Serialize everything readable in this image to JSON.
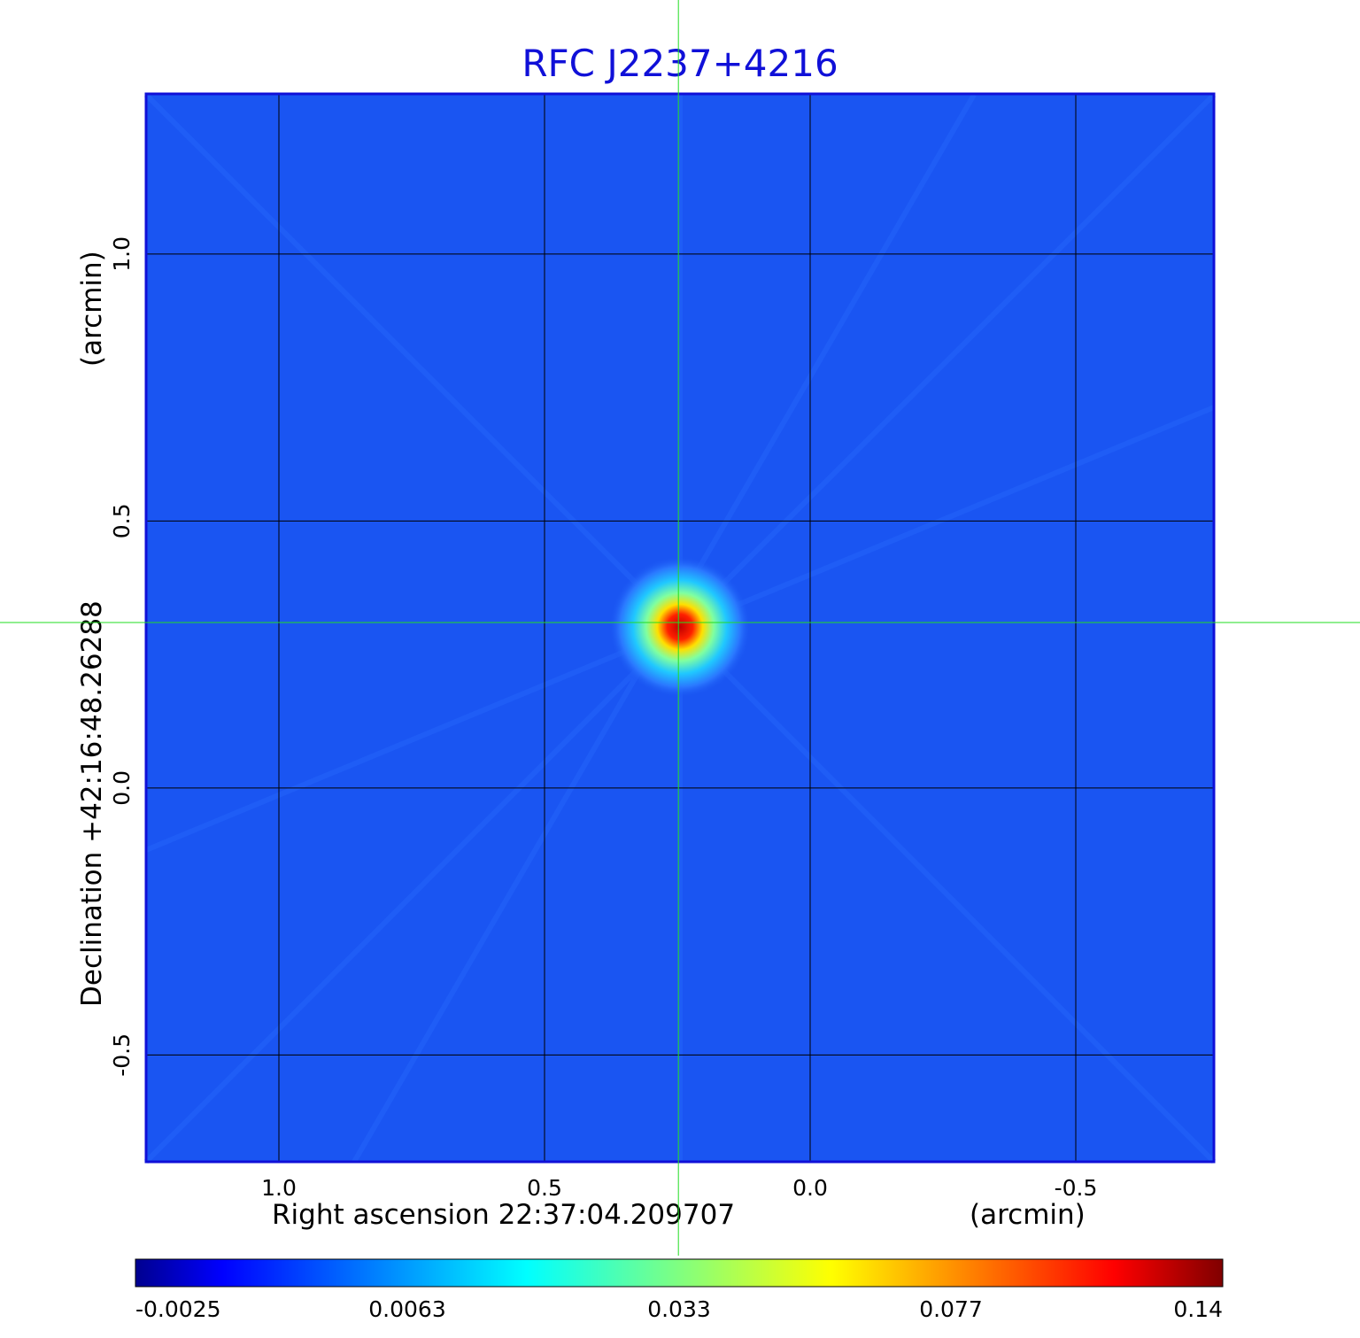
{
  "chart_data": {
    "type": "heatmap",
    "title": "RFC J2237+4216",
    "xlabel": "Right ascension  22:37:04.209707",
    "xunit": "(arcmin)",
    "ylabel": "Declination  +42:16:48.26288",
    "yunit": "(arcmin)",
    "x_ticks": [
      1.0,
      0.5,
      0.0,
      -0.5
    ],
    "x_tick_labels": [
      "1.0",
      "0.5",
      "0.0",
      "-0.5"
    ],
    "y_ticks": [
      1.0,
      0.5,
      0.0,
      -0.5
    ],
    "y_tick_labels": [
      "1.0",
      "0.5",
      "0.0",
      "-0.5"
    ],
    "xlim": [
      1.25,
      -0.76
    ],
    "ylim": [
      -0.7,
      1.3
    ],
    "x_axis_inverted": true,
    "grid": true,
    "crosshair": {
      "x": 0.248,
      "y": 0.31,
      "color": "#22dd22"
    },
    "source": {
      "x": 0.248,
      "y": 0.31,
      "peak": 0.14
    },
    "colorbar": {
      "orientation": "horizontal",
      "position": "bottom",
      "tick_labels": [
        "-0.0025",
        "0.0063",
        "0.033",
        "0.077",
        "0.14"
      ],
      "colormap": [
        "#00008f",
        "#0000ff",
        "#00ffff",
        "#ffff00",
        "#ff0000",
        "#800000"
      ]
    },
    "background_color": "#1a55f2"
  }
}
